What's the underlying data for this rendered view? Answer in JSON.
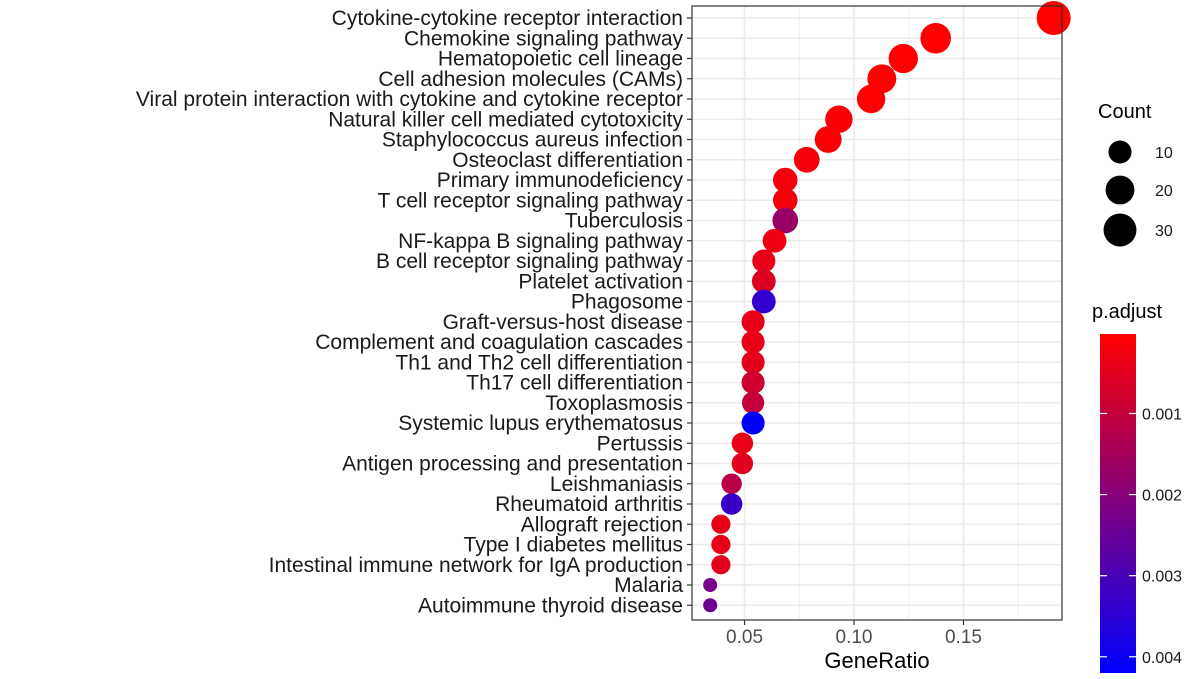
{
  "chart_data": {
    "type": "scatter",
    "xlabel": "GeneRatio",
    "ylabel": "",
    "xlim": [
      0.026,
      0.195
    ],
    "xticks": [
      0.05,
      0.1,
      0.15
    ],
    "xtick_labels": [
      "0.05",
      "0.10",
      "0.15"
    ],
    "grid": true,
    "points": [
      {
        "term": "Cytokine-cytokine receptor interaction",
        "x": 0.1912,
        "count": 33,
        "p_adjust": 2e-05
      },
      {
        "term": "Chemokine signaling pathway",
        "x": 0.1373,
        "count": 24,
        "p_adjust": 3e-05
      },
      {
        "term": "Hematopoietic cell lineage",
        "x": 0.1225,
        "count": 21,
        "p_adjust": 3e-05
      },
      {
        "term": "Cell adhesion molecules (CAMs)",
        "x": 0.1127,
        "count": 20,
        "p_adjust": 4e-05
      },
      {
        "term": "Viral protein interaction with cytokine and cytokine receptor",
        "x": 0.1078,
        "count": 19,
        "p_adjust": 4e-05
      },
      {
        "term": "Natural killer cell mediated cytotoxicity",
        "x": 0.0931,
        "count": 17,
        "p_adjust": 0.0001
      },
      {
        "term": "Staphylococcus aureus infection",
        "x": 0.0882,
        "count": 16,
        "p_adjust": 0.0001
      },
      {
        "term": "Osteoclast differentiation",
        "x": 0.0784,
        "count": 14,
        "p_adjust": 0.0002
      },
      {
        "term": "Primary immunodeficiency",
        "x": 0.0686,
        "count": 12,
        "p_adjust": 0.0002
      },
      {
        "term": "T cell receptor signaling pathway",
        "x": 0.0686,
        "count": 12,
        "p_adjust": 0.0002
      },
      {
        "term": "Tuberculosis",
        "x": 0.0686,
        "count": 14,
        "p_adjust": 0.0017
      },
      {
        "term": "NF-kappa B signaling pathway",
        "x": 0.0637,
        "count": 11,
        "p_adjust": 0.0003
      },
      {
        "term": "B cell receptor signaling pathway",
        "x": 0.0588,
        "count": 10,
        "p_adjust": 0.0004
      },
      {
        "term": "Platelet activation",
        "x": 0.0588,
        "count": 11,
        "p_adjust": 0.0006
      },
      {
        "term": "Phagosome",
        "x": 0.0588,
        "count": 11,
        "p_adjust": 0.0034
      },
      {
        "term": "Graft-versus-host disease",
        "x": 0.0539,
        "count": 10,
        "p_adjust": 0.0004
      },
      {
        "term": "Complement and coagulation cascades",
        "x": 0.0539,
        "count": 10,
        "p_adjust": 0.0004
      },
      {
        "term": "Th1 and Th2 cell differentiation",
        "x": 0.0539,
        "count": 10,
        "p_adjust": 0.0005
      },
      {
        "term": "Th17 cell differentiation",
        "x": 0.0539,
        "count": 10,
        "p_adjust": 0.0008
      },
      {
        "term": "Toxoplasmosis",
        "x": 0.0539,
        "count": 9,
        "p_adjust": 0.001
      },
      {
        "term": "Systemic lupus erythematosus",
        "x": 0.0539,
        "count": 10,
        "p_adjust": 0.0042
      },
      {
        "term": "Pertussis",
        "x": 0.049,
        "count": 8,
        "p_adjust": 0.0004
      },
      {
        "term": "Antigen processing and presentation",
        "x": 0.049,
        "count": 8,
        "p_adjust": 0.0005
      },
      {
        "term": "Leishmaniasis",
        "x": 0.0441,
        "count": 7,
        "p_adjust": 0.0012
      },
      {
        "term": "Rheumatoid arthritis",
        "x": 0.0441,
        "count": 8,
        "p_adjust": 0.0033
      },
      {
        "term": "Allograft rejection",
        "x": 0.0392,
        "count": 6,
        "p_adjust": 0.0004
      },
      {
        "term": "Type I diabetes mellitus",
        "x": 0.0392,
        "count": 6,
        "p_adjust": 0.0004
      },
      {
        "term": "Intestinal immune network for IgA production",
        "x": 0.0392,
        "count": 6,
        "p_adjust": 0.0005
      },
      {
        "term": "Malaria",
        "x": 0.0343,
        "count": 4,
        "p_adjust": 0.0022
      },
      {
        "term": "Autoimmune thyroid disease",
        "x": 0.0343,
        "count": 4,
        "p_adjust": 0.0024
      }
    ],
    "size_legend": {
      "title": "Count",
      "values": [
        10,
        20,
        30
      ],
      "labels": [
        "10",
        "20",
        "30"
      ],
      "range": [
        4,
        33
      ]
    },
    "color_legend": {
      "title": "p.adjust",
      "min": 2e-05,
      "max": 0.0042,
      "ticks": [
        0.001,
        0.002,
        0.003,
        0.004
      ],
      "labels": [
        "0.001",
        "0.002",
        "0.003",
        "0.004"
      ],
      "low_color": "#ff0000",
      "high_color": "#0000ff"
    },
    "panel_background": "#ffffff",
    "grid_color": "#ebebeb",
    "panel_border_color": "#333333"
  }
}
